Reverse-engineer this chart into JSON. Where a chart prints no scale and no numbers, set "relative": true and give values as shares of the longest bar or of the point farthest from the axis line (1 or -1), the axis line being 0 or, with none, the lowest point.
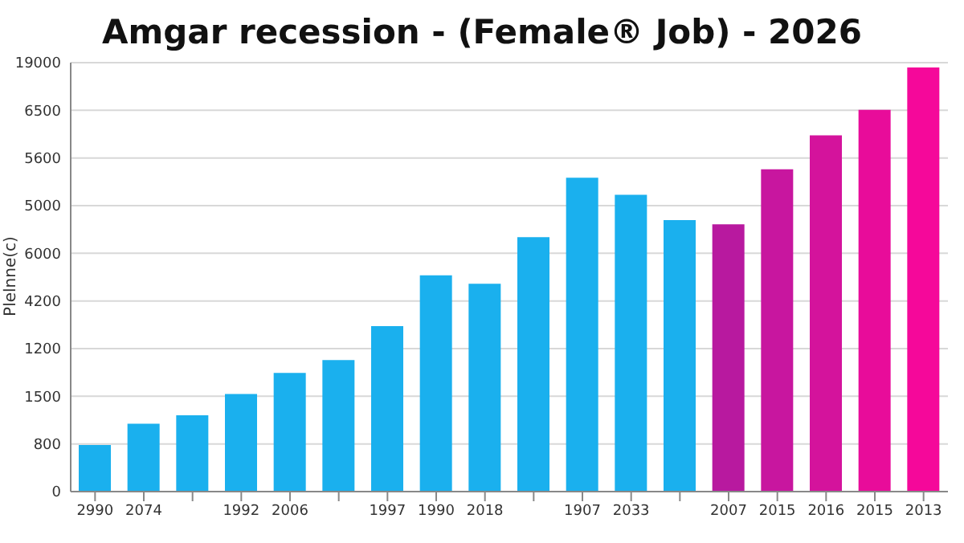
{
  "chart_data": {
    "type": "bar",
    "title": "Amgar recession - (Female® Job) - 2026",
    "ylabel": "Plelnne(c)",
    "relative": true,
    "categories": [
      "2990",
      "2074",
      null,
      "1992",
      "2006",
      null,
      "1997",
      "1990",
      "2018",
      null,
      "1907",
      "2033",
      null,
      "2007",
      "2015",
      "2016",
      "2015",
      "2013"
    ],
    "values": [
      0.11,
      0.16,
      0.18,
      0.23,
      0.28,
      0.31,
      0.39,
      0.51,
      0.49,
      0.6,
      0.74,
      0.7,
      0.64,
      0.63,
      0.76,
      0.84,
      0.9,
      1
    ],
    "colors": [
      "#1ab0ee",
      "#1ab0ee",
      "#1ab0ee",
      "#1ab0ee",
      "#1ab0ee",
      "#1ab0ee",
      "#1ab0ee",
      "#1ab0ee",
      "#1ab0ee",
      "#1ab0ee",
      "#1ab0ee",
      "#1ab0ee",
      "#1ab0ee",
      "#b8199f",
      "#c8169f",
      "#d4139c",
      "#e80c9a",
      "#f5089a"
    ],
    "annotations": [
      "0",
      "800",
      "1500",
      "1200",
      "4200",
      "6000",
      "5000",
      "5600",
      "6500",
      "19000"
    ],
    "grid": "y"
  }
}
